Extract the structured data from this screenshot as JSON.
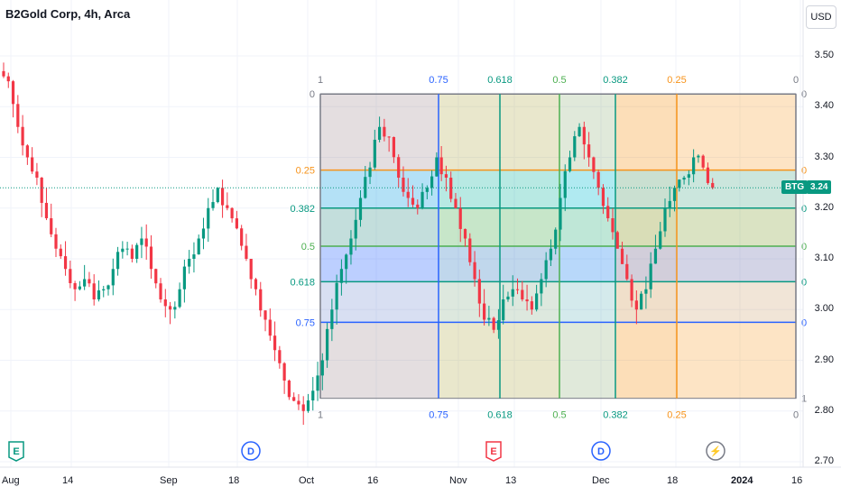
{
  "header": {
    "title": "B2Gold Corp, 4h, Arca"
  },
  "currency_button": "USD",
  "price_axis": [
    {
      "label": "3.50",
      "v": 3.5
    },
    {
      "label": "3.40",
      "v": 3.4
    },
    {
      "label": "3.30",
      "v": 3.3
    },
    {
      "label": "3.20",
      "v": 3.2
    },
    {
      "label": "3.10",
      "v": 3.1
    },
    {
      "label": "3.00",
      "v": 3.0
    },
    {
      "label": "2.90",
      "v": 2.9
    },
    {
      "label": "2.80",
      "v": 2.8
    },
    {
      "label": "2.70",
      "v": 2.7
    }
  ],
  "time_axis": [
    {
      "label": "Aug",
      "bold": false
    },
    {
      "label": "14",
      "bold": false
    },
    {
      "label": "Sep",
      "bold": false
    },
    {
      "label": "18",
      "bold": false
    },
    {
      "label": "Oct",
      "bold": false
    },
    {
      "label": "16",
      "bold": false
    },
    {
      "label": "Nov",
      "bold": false
    },
    {
      "label": "13",
      "bold": false
    },
    {
      "label": "Dec",
      "bold": false
    },
    {
      "label": "18",
      "bold": false
    },
    {
      "label": "2024",
      "bold": true
    },
    {
      "label": "16",
      "bold": false
    }
  ],
  "last_price": {
    "symbol": "BTG",
    "value": "3.24",
    "v": 3.24
  },
  "fib": {
    "top": 3.425,
    "bottom": 2.825,
    "h_levels": [
      {
        "label": "0",
        "v": 3.425,
        "color": "#787b86",
        "right": "0"
      },
      {
        "label": "0.25",
        "v": 3.275,
        "color": "#f7931a",
        "right": "0"
      },
      {
        "label": "0.382",
        "v": 3.2,
        "color": "#089981",
        "right": "0"
      },
      {
        "label": "0.5",
        "v": 3.125,
        "color": "#4caf50",
        "right": "0"
      },
      {
        "label": "0.618",
        "v": 3.055,
        "color": "#089981",
        "right": "0"
      },
      {
        "label": "0.75",
        "v": 2.975,
        "color": "#2962ff",
        "right": "0"
      }
    ],
    "v_levels": [
      {
        "label": "1",
        "color": "#787b86"
      },
      {
        "label": "0.75",
        "color": "#2962ff"
      },
      {
        "label": "0.618",
        "color": "#089981"
      },
      {
        "label": "0.5",
        "color": "#4caf50"
      },
      {
        "label": "0.382",
        "color": "#089981"
      },
      {
        "label": "0.25",
        "color": "#f7931a"
      },
      {
        "label": "0",
        "color": "#787b86"
      }
    ],
    "right_bottom_label": "1"
  },
  "events": [
    {
      "letter": "E",
      "type": "earnings"
    },
    {
      "letter": "D",
      "type": "dividend"
    },
    {
      "letter": "E",
      "type": "earnings-upcoming"
    },
    {
      "letter": "D",
      "type": "dividend"
    },
    {
      "letter": "⚡",
      "type": "split"
    }
  ],
  "colors": {
    "up": "#089981",
    "down": "#f23645",
    "grid": "#f0f3fa"
  },
  "chart_data": {
    "type": "candlestick",
    "title": "B2Gold Corp, 4h, Arca",
    "ylim": [
      2.7,
      3.55
    ],
    "close_series": [
      3.45,
      3.36,
      3.3,
      3.26,
      3.18,
      3.12,
      3.08,
      3.04,
      3.06,
      3.02,
      3.04,
      3.08,
      3.12,
      3.1,
      3.14,
      3.08,
      3.02,
      3.0,
      3.04,
      3.1,
      3.14,
      3.2,
      3.24,
      3.2,
      3.16,
      3.1,
      3.04,
      2.98,
      2.92,
      2.86,
      2.82,
      2.8,
      2.84,
      2.9,
      3.0,
      3.08,
      3.14,
      3.22,
      3.28,
      3.36,
      3.34,
      3.26,
      3.22,
      3.2,
      3.24,
      3.3,
      3.26,
      3.2,
      3.14,
      3.06,
      2.98,
      2.96,
      3.02,
      3.04,
      3.02,
      3.0,
      3.06,
      3.12,
      3.22,
      3.3,
      3.36,
      3.3,
      3.24,
      3.18,
      3.12,
      3.06,
      3.0,
      3.04,
      3.12,
      3.2,
      3.24,
      3.26,
      3.3,
      3.28,
      3.24
    ]
  }
}
